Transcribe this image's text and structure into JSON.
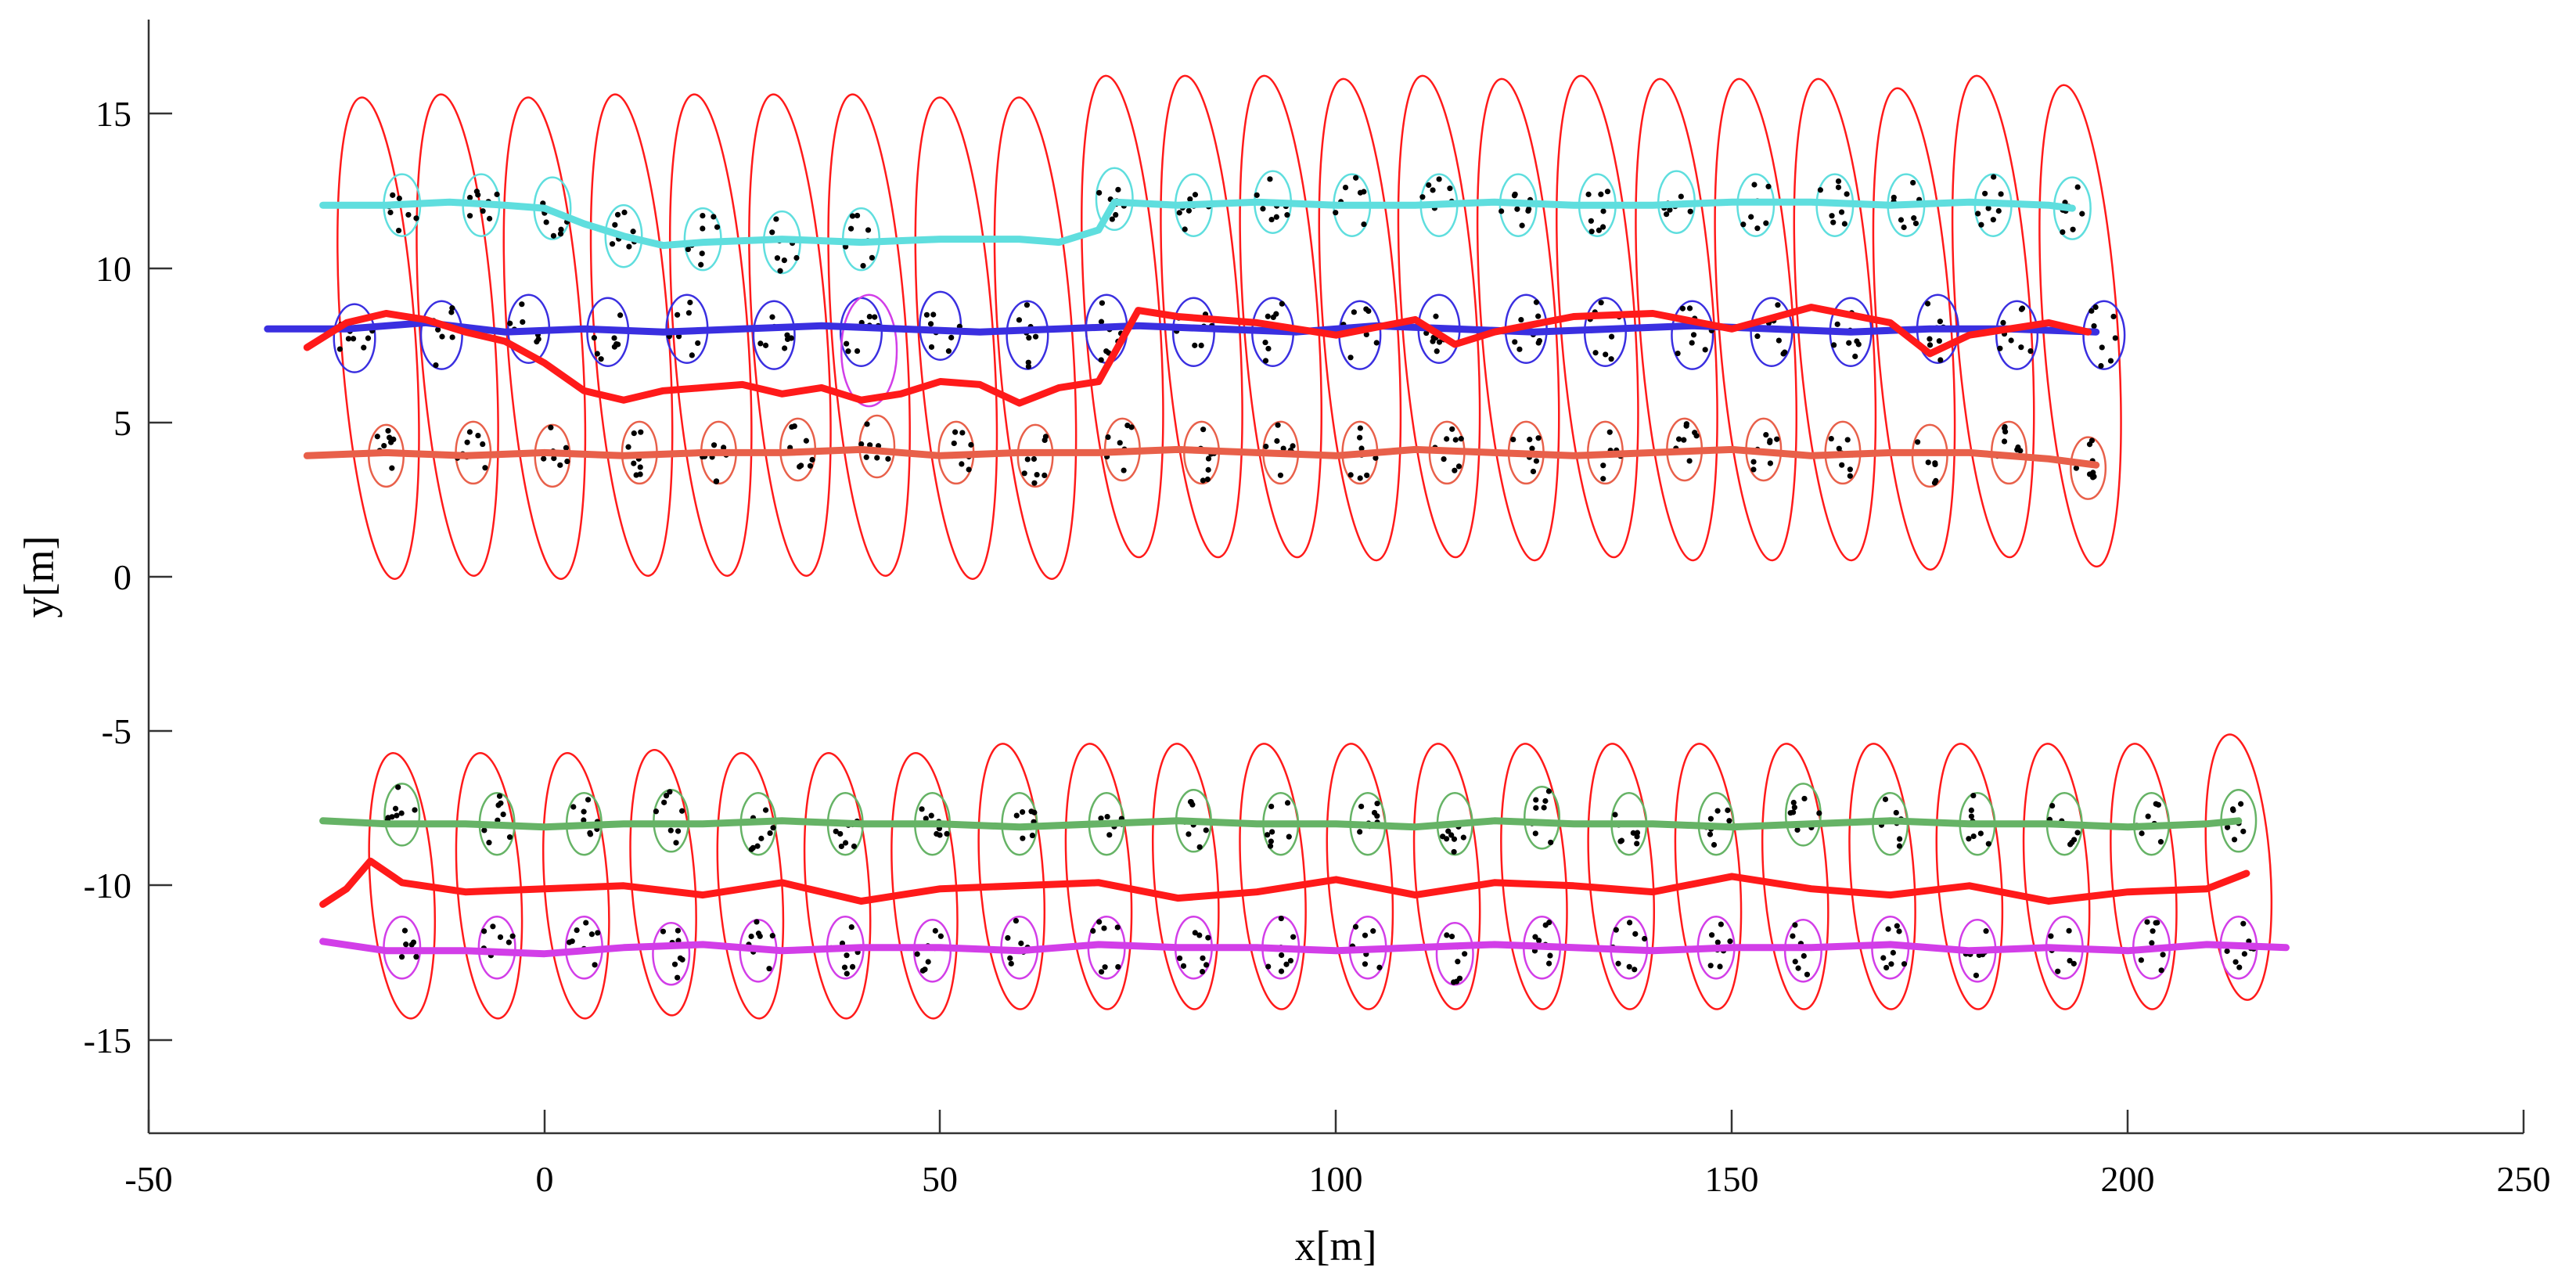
{
  "chart_data": {
    "type": "line",
    "title": "",
    "xlabel": "x[m]",
    "ylabel": "y[m]",
    "xlim": [
      -50,
      250
    ],
    "ylim": [
      -18,
      18
    ],
    "grid": false,
    "xticks": [
      -50,
      0,
      50,
      100,
      150,
      200,
      250
    ],
    "xtick_labels": [
      "-50",
      "0",
      "50",
      "100",
      "150",
      "200",
      "250"
    ],
    "yticks": [
      15,
      10,
      5,
      0,
      -5,
      -10,
      -15
    ],
    "ytick_labels": [
      "15",
      "10",
      "5",
      "0",
      "-5",
      "-10",
      "-15"
    ],
    "colors": {
      "cyan": "#5fdede",
      "blue": "#3a2fe0",
      "estimate": "#ff1a1a",
      "orange": "#e8604a",
      "green": "#66b366",
      "magenta": "#d23ee8",
      "ellipse": "#ff1a1a",
      "points": "#000000"
    },
    "series": [
      {
        "name": "cyan-track",
        "color": "cyan",
        "x": [
          -28,
          -20,
          -12,
          -5,
          0,
          5,
          10,
          15,
          20,
          30,
          40,
          50,
          60,
          65,
          70,
          72,
          80,
          90,
          100,
          110,
          120,
          130,
          140,
          150,
          160,
          170,
          180,
          190,
          193
        ],
        "y": [
          12.0,
          12.0,
          12.1,
          12.0,
          11.9,
          11.4,
          11.0,
          10.7,
          10.8,
          10.9,
          10.8,
          10.9,
          10.9,
          10.8,
          11.2,
          12.1,
          12.0,
          12.1,
          12.0,
          12.0,
          12.1,
          12.0,
          12.0,
          12.1,
          12.1,
          12.0,
          12.1,
          12.0,
          11.9
        ]
      },
      {
        "name": "blue-track",
        "color": "blue",
        "x": [
          -35,
          -25,
          -15,
          -5,
          5,
          15,
          25,
          35,
          45,
          55,
          65,
          75,
          85,
          95,
          105,
          115,
          125,
          135,
          145,
          155,
          165,
          175,
          185,
          196
        ],
        "y": [
          8.0,
          8.0,
          8.2,
          7.9,
          8.0,
          7.9,
          8.0,
          8.1,
          8.0,
          7.9,
          8.0,
          8.1,
          8.0,
          7.9,
          8.1,
          8.0,
          7.9,
          8.0,
          8.1,
          8.0,
          7.9,
          8.0,
          8.0,
          7.9
        ]
      },
      {
        "name": "red-upper",
        "color": "estimate",
        "x": [
          -30,
          -25,
          -20,
          -15,
          -10,
          -5,
          0,
          5,
          10,
          15,
          20,
          25,
          30,
          35,
          40,
          45,
          50,
          55,
          60,
          65,
          70,
          75,
          80,
          90,
          100,
          110,
          115,
          120,
          130,
          140,
          150,
          160,
          170,
          175,
          180,
          190,
          195
        ],
        "y": [
          7.4,
          8.2,
          8.5,
          8.3,
          7.9,
          7.6,
          6.9,
          6.0,
          5.7,
          6.0,
          6.1,
          6.2,
          5.9,
          6.1,
          5.7,
          5.9,
          6.3,
          6.2,
          5.6,
          6.1,
          6.3,
          8.6,
          8.4,
          8.2,
          7.8,
          8.3,
          7.5,
          7.9,
          8.4,
          8.5,
          8.0,
          8.7,
          8.2,
          7.2,
          7.8,
          8.2,
          7.9
        ]
      },
      {
        "name": "orange-track",
        "color": "orange",
        "x": [
          -30,
          -20,
          -10,
          0,
          10,
          20,
          30,
          40,
          50,
          60,
          70,
          80,
          90,
          100,
          110,
          120,
          130,
          140,
          150,
          160,
          170,
          180,
          190,
          196
        ],
        "y": [
          3.9,
          4.0,
          3.9,
          4.0,
          3.9,
          4.0,
          4.0,
          4.1,
          3.9,
          4.0,
          4.0,
          4.1,
          4.0,
          3.9,
          4.1,
          4.0,
          3.9,
          4.0,
          4.1,
          3.9,
          4.0,
          4.0,
          3.8,
          3.6
        ]
      },
      {
        "name": "green-track",
        "color": "green",
        "x": [
          -28,
          -20,
          -10,
          0,
          10,
          20,
          30,
          40,
          50,
          60,
          70,
          80,
          90,
          100,
          110,
          120,
          130,
          140,
          150,
          160,
          170,
          180,
          190,
          200,
          210,
          214
        ],
        "y": [
          -7.9,
          -8.0,
          -8.0,
          -8.1,
          -8.0,
          -8.0,
          -7.9,
          -8.0,
          -8.0,
          -8.1,
          -8.0,
          -7.9,
          -8.0,
          -8.0,
          -8.1,
          -7.9,
          -8.0,
          -8.0,
          -8.1,
          -8.0,
          -7.9,
          -8.0,
          -8.0,
          -8.1,
          -8.0,
          -7.9
        ]
      },
      {
        "name": "red-lower",
        "color": "estimate",
        "x": [
          -28,
          -25,
          -22,
          -18,
          -10,
          0,
          10,
          20,
          30,
          40,
          50,
          60,
          70,
          80,
          90,
          100,
          110,
          120,
          130,
          140,
          150,
          160,
          170,
          180,
          190,
          200,
          210,
          215
        ],
        "y": [
          -10.6,
          -10.1,
          -9.2,
          -9.9,
          -10.2,
          -10.1,
          -10.0,
          -10.3,
          -9.9,
          -10.5,
          -10.1,
          -10.0,
          -9.9,
          -10.4,
          -10.2,
          -9.8,
          -10.3,
          -9.9,
          -10.0,
          -10.2,
          -9.7,
          -10.1,
          -10.3,
          -10.0,
          -10.5,
          -10.2,
          -10.1,
          -9.6
        ]
      },
      {
        "name": "magenta-track",
        "color": "magenta",
        "x": [
          -28,
          -20,
          -10,
          0,
          10,
          20,
          30,
          40,
          50,
          60,
          70,
          80,
          90,
          100,
          110,
          120,
          130,
          140,
          150,
          160,
          170,
          180,
          190,
          200,
          210,
          220
        ],
        "y": [
          -11.8,
          -12.1,
          -12.1,
          -12.2,
          -12.0,
          -11.9,
          -12.1,
          -12.0,
          -12.0,
          -12.1,
          -11.9,
          -12.0,
          -12.0,
          -12.1,
          -12.0,
          -11.9,
          -12.0,
          -12.1,
          -12.0,
          -12.0,
          -11.9,
          -12.1,
          -12.0,
          -12.1,
          -11.9,
          -12.0
        ]
      }
    ],
    "cluster_ellipses": [
      {
        "track": "cyan",
        "x": [
          -18,
          -8,
          1,
          10,
          20,
          30,
          40,
          72,
          82,
          92,
          102,
          113,
          123,
          133,
          143,
          153,
          163,
          172,
          183,
          193
        ],
        "y": [
          12.0,
          12.0,
          11.9,
          11.0,
          10.9,
          10.8,
          10.9,
          12.2,
          12.0,
          12.1,
          12.0,
          12.0,
          12.0,
          12.0,
          12.1,
          12.0,
          12.0,
          12.0,
          12.0,
          11.9
        ],
        "rx": 2.3,
        "ry": 1.0
      },
      {
        "track": "blue",
        "x": [
          -24,
          -13,
          -2,
          8,
          18,
          29,
          40,
          50,
          61,
          71,
          82,
          92,
          103,
          113,
          124,
          134,
          145,
          155,
          165,
          176,
          186,
          197
        ],
        "y": [
          7.7,
          7.8,
          8.0,
          7.9,
          8.0,
          7.8,
          7.9,
          8.1,
          7.8,
          8.0,
          7.9,
          7.9,
          7.8,
          8.0,
          8.0,
          7.9,
          7.8,
          7.9,
          7.9,
          8.0,
          7.8,
          7.8
        ],
        "rx": 2.6,
        "ry": 1.1
      },
      {
        "track": "orange",
        "x": [
          -20,
          -9,
          1,
          12,
          22,
          32,
          42,
          52,
          62,
          73,
          83,
          93,
          103,
          114,
          124,
          134,
          144,
          154,
          164,
          175,
          185,
          195
        ],
        "y": [
          3.9,
          4.0,
          3.9,
          4.0,
          4.0,
          4.1,
          4.2,
          4.0,
          3.9,
          4.1,
          4.0,
          4.0,
          4.0,
          4.0,
          4.0,
          4.0,
          4.1,
          4.1,
          4.0,
          3.9,
          4.0,
          3.5
        ],
        "rx": 2.2,
        "ry": 1.0
      },
      {
        "track": "green",
        "x": [
          -18,
          -6,
          5,
          16,
          27,
          38,
          49,
          60,
          71,
          82,
          93,
          104,
          115,
          126,
          137,
          148,
          159,
          170,
          181,
          192,
          203,
          214
        ],
        "y": [
          -7.7,
          -8.0,
          -8.0,
          -7.9,
          -8.0,
          -8.0,
          -8.0,
          -8.0,
          -8.0,
          -7.9,
          -8.0,
          -8.0,
          -8.0,
          -7.8,
          -8.0,
          -8.0,
          -7.7,
          -8.0,
          -8.0,
          -8.0,
          -8.0,
          -7.9
        ],
        "rx": 2.2,
        "ry": 1.0
      },
      {
        "track": "magenta",
        "x": [
          -18,
          -6,
          5,
          16,
          27,
          38,
          49,
          60,
          71,
          82,
          93,
          104,
          115,
          126,
          137,
          148,
          159,
          170,
          181,
          192,
          203,
          214
        ],
        "y": [
          -12.0,
          -12.0,
          -12.0,
          -12.2,
          -12.1,
          -12.0,
          -12.1,
          -12.0,
          -12.0,
          -12.0,
          -12.0,
          -12.0,
          -12.2,
          -12.0,
          -12.0,
          -12.0,
          -12.1,
          -12.0,
          -12.1,
          -12.0,
          -12.0,
          -12.0
        ],
        "rx": 2.3,
        "ry": 1.0
      }
    ],
    "extent_ellipses": [
      {
        "group": "upper",
        "x": [
          -21,
          -11,
          0,
          11,
          21,
          31,
          41,
          52,
          62,
          73,
          83,
          93,
          103,
          113,
          123,
          133,
          143,
          153,
          163,
          173,
          183,
          194
        ],
        "y": [
          7.7,
          7.8,
          7.7,
          7.8,
          7.8,
          7.8,
          7.8,
          7.7,
          7.7,
          8.4,
          8.4,
          8.4,
          8.3,
          8.4,
          8.3,
          8.4,
          8.3,
          8.3,
          8.3,
          8.0,
          8.4,
          8.1
        ],
        "rx": 4.7,
        "ry": 7.8
      },
      {
        "group": "lower",
        "x": [
          -18,
          -7,
          4,
          15,
          26,
          37,
          48,
          59,
          70,
          81,
          92,
          103,
          114,
          125,
          136,
          147,
          158,
          169,
          180,
          191,
          202,
          214
        ],
        "y": [
          -10.0,
          -10.0,
          -10.0,
          -9.9,
          -10.0,
          -10.0,
          -10.0,
          -9.7,
          -9.7,
          -9.7,
          -9.7,
          -9.7,
          -9.7,
          -9.7,
          -9.7,
          -9.7,
          -9.7,
          -9.7,
          -9.7,
          -9.7,
          -9.7,
          -9.4
        ],
        "rx": 4.0,
        "ry": 4.3
      }
    ],
    "special_ellipses": [
      {
        "color": "magenta",
        "x": 41,
        "y": 7.3,
        "rx": 3.5,
        "ry": 1.8
      }
    ]
  }
}
